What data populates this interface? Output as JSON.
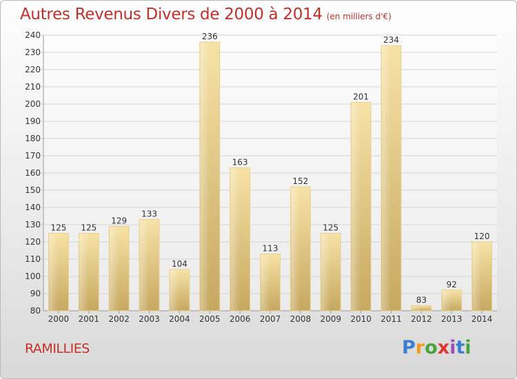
{
  "header": {
    "title": "Autres Revenus Divers de 2000 à 2014",
    "subtitle": "(en milliers d'€)"
  },
  "place_name": "RAMILLIES",
  "logo": {
    "text": "Proxiti",
    "letters": [
      "P",
      "r",
      "o",
      "x",
      "i",
      "t",
      "i"
    ]
  },
  "colors": {
    "title": "#c2302a",
    "bar_light": "#f5dd9c",
    "bar_dark": "#c9ad64",
    "grid": "#d4d4d4"
  },
  "chart_data": {
    "type": "bar",
    "title": "Autres Revenus Divers de 2000 à 2014",
    "subtitle": "(en milliers d'€)",
    "categories": [
      "2000",
      "2001",
      "2002",
      "2003",
      "2004",
      "2005",
      "2006",
      "2007",
      "2008",
      "2009",
      "2010",
      "2011",
      "2012",
      "2013",
      "2014"
    ],
    "values": [
      125,
      125,
      129,
      133,
      104,
      236,
      163,
      113,
      152,
      125,
      201,
      234,
      83,
      92,
      120
    ],
    "ylim": [
      80,
      240
    ],
    "yticks": [
      80,
      90,
      100,
      110,
      120,
      130,
      140,
      150,
      160,
      170,
      180,
      190,
      200,
      210,
      220,
      230,
      240
    ],
    "grid": true,
    "data_labels": true
  }
}
